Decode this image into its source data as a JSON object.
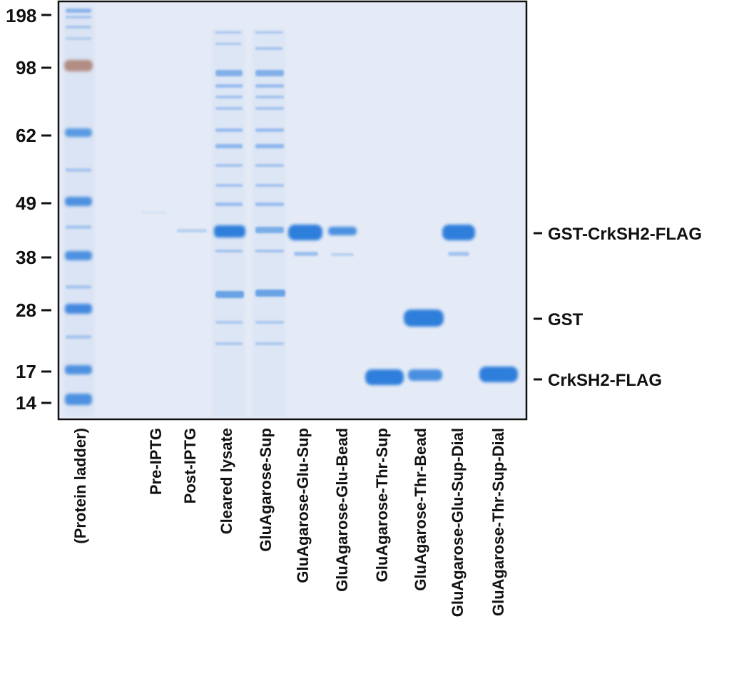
{
  "ladder": {
    "markers": [
      {
        "label": "198"
      },
      {
        "label": "98"
      },
      {
        "label": "62"
      },
      {
        "label": "49"
      },
      {
        "label": "38"
      },
      {
        "label": "28"
      },
      {
        "label": "17"
      },
      {
        "label": "14"
      }
    ]
  },
  "lanes": [
    {
      "label": "(Protein ladder)"
    },
    {
      "label": "Pre-IPTG"
    },
    {
      "label": "Post-IPTG"
    },
    {
      "label": "Cleared lysate"
    },
    {
      "label": "GluAgarose-Sup"
    },
    {
      "label": "GluAgarose-Glu-Sup"
    },
    {
      "label": "GluAgarose-Glu-Bead"
    },
    {
      "label": "GluAgarose-Thr-Sup"
    },
    {
      "label": "GluAgarose-Thr-Bead"
    },
    {
      "label": "GluAgarose-Glu-Sup-Dial"
    },
    {
      "label": "GluAgarose-Thr-Sup-Dial"
    }
  ],
  "annotations": [
    {
      "label": "GST-CrkSH2-FLAG"
    },
    {
      "label": "GST"
    },
    {
      "label": "CrkSH2-FLAG"
    }
  ],
  "colors": {
    "gel_background": "#e5ebf6",
    "band": "#2e7fdc",
    "ladder_brown": "#b28d83",
    "border": "#111111"
  }
}
